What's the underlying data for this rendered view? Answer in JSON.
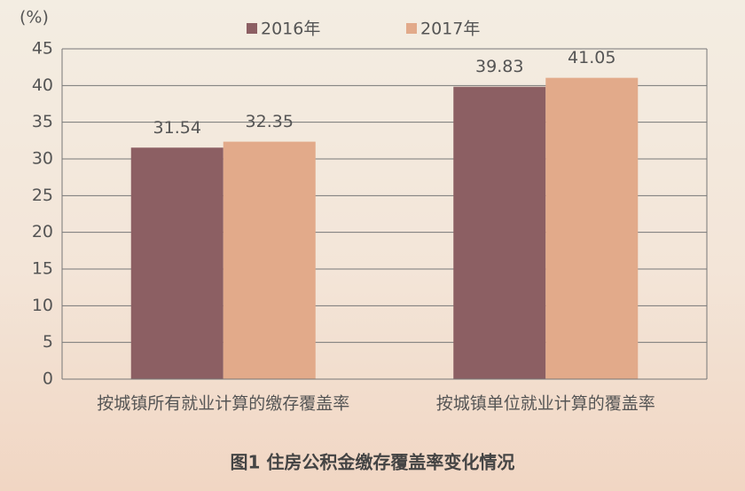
{
  "chart_data": {
    "type": "bar",
    "title": "图1  住房公积金缴存覆盖率变化情况",
    "y_label": "(%)",
    "categories": [
      "按城镇所有就业计算的缴存覆盖率",
      "按城镇单位就业计算的覆盖率"
    ],
    "series": [
      {
        "name": "2016年",
        "color": "#8c5f63",
        "values": [
          31.54,
          39.83
        ]
      },
      {
        "name": "2017年",
        "color": "#e2aa8a",
        "values": [
          32.35,
          41.05
        ]
      }
    ],
    "ylim": [
      0,
      45
    ],
    "yticks": [
      0,
      5,
      10,
      15,
      20,
      25,
      30,
      35,
      40,
      45
    ],
    "grid": true,
    "legend": "top"
  }
}
